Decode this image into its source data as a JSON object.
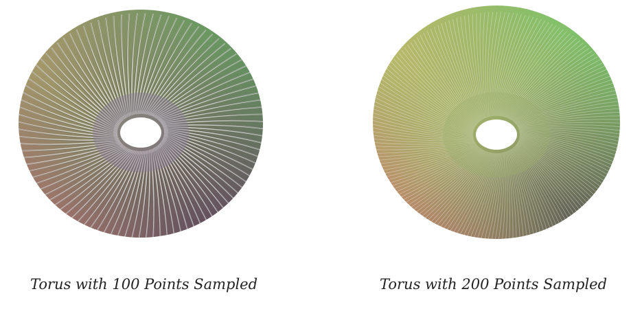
{
  "figures": [
    {
      "caption": "Torus with 100 Points Sampled",
      "points_sampled": 100,
      "colors": {
        "top_left": "#c8b26a",
        "top_right": "#4fae5a",
        "bottom_left": "#c56a6a",
        "bottom_right": "#4a2a55",
        "center": "#8a7c95"
      }
    },
    {
      "caption": "Torus with 200 Points Sampled",
      "points_sampled": 200,
      "colors": {
        "top_left": "#c8c06a",
        "top_right": "#63d06a",
        "bottom_left": "#d8666a",
        "bottom_right": "#3a2f4a",
        "center": "#9bb06a"
      }
    }
  ]
}
